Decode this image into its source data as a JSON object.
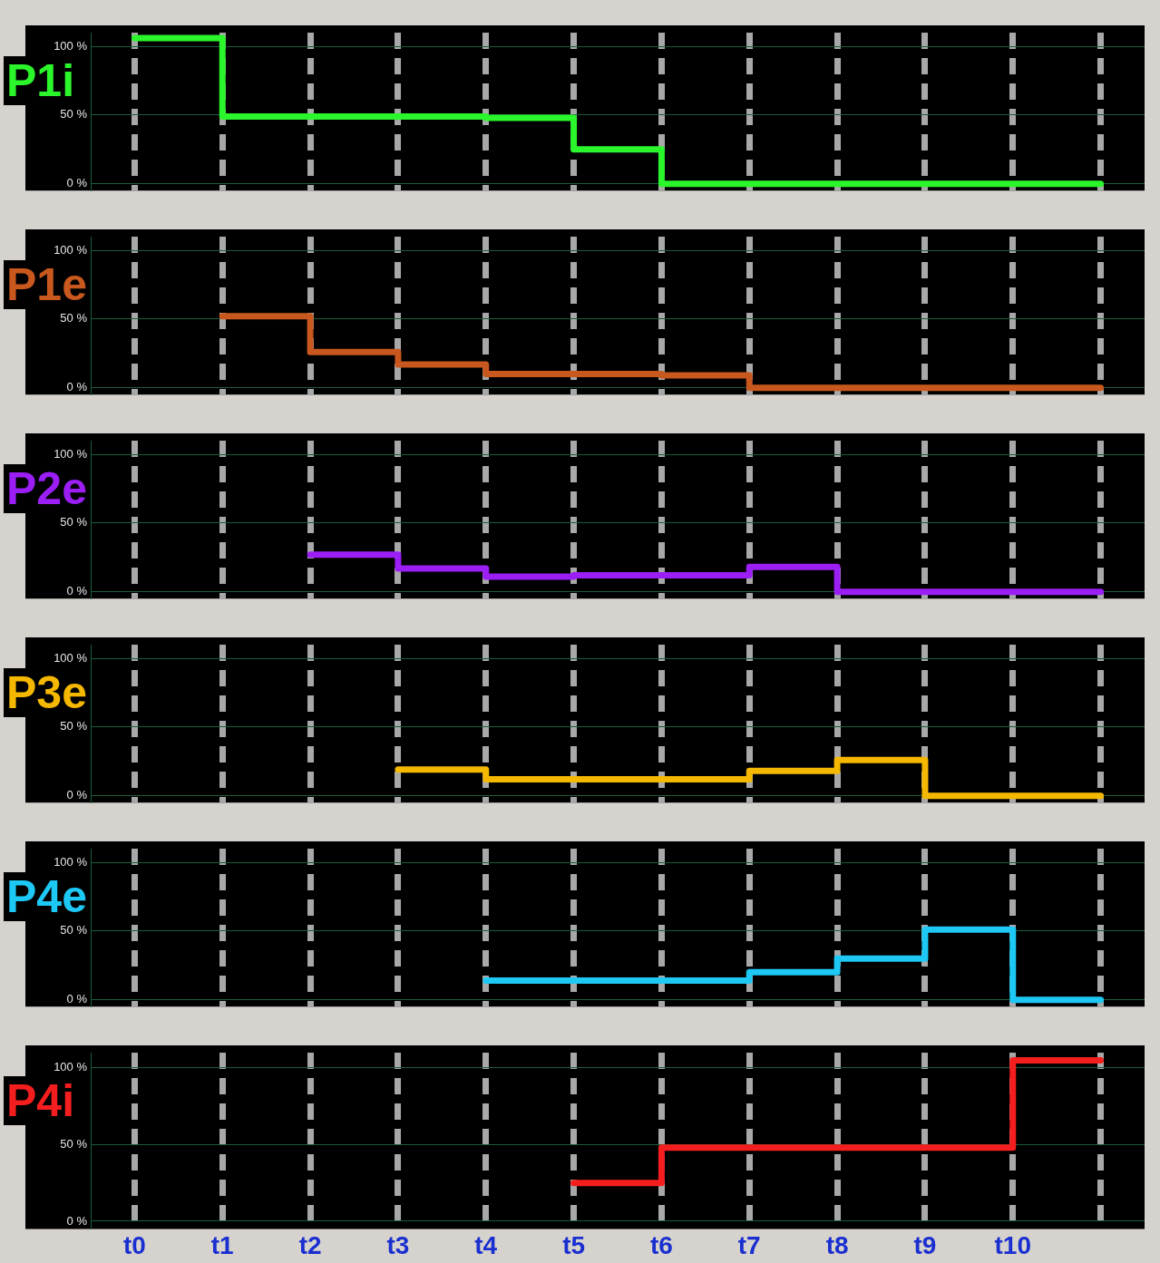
{
  "chart_data": [
    {
      "type": "step",
      "categories": [
        null,
        null,
        null,
        null,
        null,
        null,
        null,
        null,
        null,
        null,
        null,
        null
      ],
      "series": [
        {
          "name": "P1i",
          "color": "#2bf52b",
          "values": [
            106,
            49,
            49,
            49,
            48,
            25,
            0,
            0,
            0,
            0,
            0,
            0
          ]
        }
      ],
      "ylim": [
        -5,
        110
      ],
      "yticks": [
        {
          "value": 0,
          "label": "0 %"
        },
        {
          "value": 50,
          "label": "50 %"
        },
        {
          "value": 100,
          "label": "100 %"
        }
      ],
      "grid": true,
      "tick_labels": "y"
    },
    {
      "type": "step",
      "categories": [
        null,
        null,
        null,
        null,
        null,
        null,
        null,
        null,
        null,
        null,
        null,
        null
      ],
      "series": [
        {
          "name": "P1e",
          "color": "#c8581e",
          "values": [
            null,
            52,
            26,
            17,
            10,
            10,
            9,
            0,
            0,
            0,
            0,
            0
          ]
        }
      ],
      "ylim": [
        -5,
        110
      ],
      "yticks": [
        {
          "value": 0,
          "label": "0 %"
        },
        {
          "value": 50,
          "label": "50 %"
        },
        {
          "value": 100,
          "label": "100 %"
        }
      ],
      "grid": true,
      "tick_labels": "y"
    },
    {
      "type": "step",
      "categories": [
        null,
        null,
        null,
        null,
        null,
        null,
        null,
        null,
        null,
        null,
        null,
        null
      ],
      "series": [
        {
          "name": "P2e",
          "color": "#9b1ef5",
          "values": [
            null,
            null,
            27,
            17,
            11,
            12,
            12,
            18,
            0,
            0,
            0,
            0
          ]
        }
      ],
      "ylim": [
        -5,
        110
      ],
      "yticks": [
        {
          "value": 0,
          "label": "0 %"
        },
        {
          "value": 50,
          "label": "50 %"
        },
        {
          "value": 100,
          "label": "100 %"
        }
      ],
      "grid": true,
      "tick_labels": "y"
    },
    {
      "type": "step",
      "categories": [
        null,
        null,
        null,
        null,
        null,
        null,
        null,
        null,
        null,
        null,
        null,
        null
      ],
      "series": [
        {
          "name": "P3e",
          "color": "#f5b800",
          "values": [
            null,
            null,
            null,
            19,
            12,
            12,
            12,
            18,
            26,
            0,
            0,
            0
          ]
        }
      ],
      "ylim": [
        -5,
        110
      ],
      "yticks": [
        {
          "value": 0,
          "label": "0 %"
        },
        {
          "value": 50,
          "label": "50 %"
        },
        {
          "value": 100,
          "label": "100 %"
        }
      ],
      "grid": true,
      "tick_labels": "y"
    },
    {
      "type": "step",
      "categories": [
        null,
        null,
        null,
        null,
        null,
        null,
        null,
        null,
        null,
        null,
        null,
        null
      ],
      "series": [
        {
          "name": "P4e",
          "color": "#1ec8f5",
          "values": [
            null,
            null,
            null,
            null,
            14,
            14,
            14,
            20,
            30,
            51,
            0,
            0
          ]
        }
      ],
      "ylim": [
        -5,
        110
      ],
      "yticks": [
        {
          "value": 0,
          "label": "0 %"
        },
        {
          "value": 50,
          "label": "50 %"
        },
        {
          "value": 100,
          "label": "100 %"
        }
      ],
      "grid": true,
      "tick_labels": "y"
    },
    {
      "type": "step",
      "categories": [
        "t0",
        "t1",
        "t2",
        "t3",
        "t4",
        "t5",
        "t6",
        "t7",
        "t8",
        "t9",
        "t10",
        null
      ],
      "series": [
        {
          "name": "P4i",
          "color": "#f51e1e",
          "values": [
            null,
            null,
            null,
            null,
            null,
            25,
            48,
            48,
            48,
            48,
            105,
            105
          ]
        }
      ],
      "ylim": [
        -5,
        110
      ],
      "yticks": [
        {
          "value": 0,
          "label": "0 %"
        },
        {
          "value": 50,
          "label": "50 %"
        },
        {
          "value": 100,
          "label": "100 %"
        }
      ],
      "grid": true
    }
  ]
}
